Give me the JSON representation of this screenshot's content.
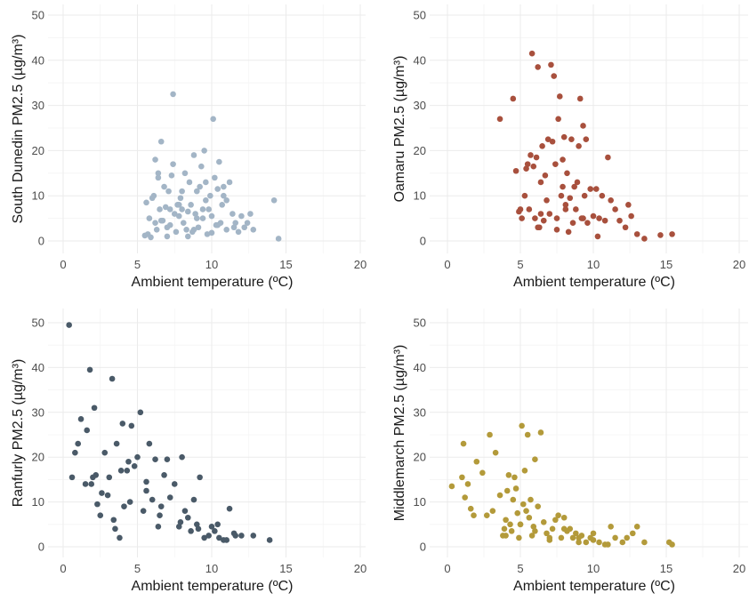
{
  "chart_data": [
    {
      "type": "scatter",
      "title": "",
      "xlabel": "Ambient temperature (ºC)",
      "ylabel": "South Dunedin PM2.5 (µg/m³)",
      "xlim": [
        0,
        20
      ],
      "ylim": [
        0,
        50
      ],
      "xticks": [
        "0",
        "5",
        "10",
        "15",
        "20"
      ],
      "yticks": [
        "0",
        "10",
        "20",
        "30",
        "40",
        "50"
      ],
      "grid": true,
      "color": "#a3b5c6",
      "series": [
        {
          "x": [
            5.5,
            5.6,
            5.7,
            5.8,
            6.0,
            6.2,
            6.3,
            6.4,
            6.5,
            6.6,
            6.7,
            6.8,
            6.9,
            7.0,
            7.1,
            7.2,
            7.3,
            7.4,
            7.5,
            7.6,
            7.7,
            7.8,
            7.9,
            8.0,
            8.1,
            8.2,
            8.3,
            8.4,
            8.5,
            8.6,
            8.7,
            8.8,
            8.9,
            9.0,
            9.1,
            9.2,
            9.3,
            9.4,
            9.5,
            9.6,
            9.7,
            9.8,
            9.9,
            10.0,
            10.1,
            10.2,
            10.3,
            10.4,
            10.5,
            10.6,
            10.7,
            10.8,
            11.0,
            11.2,
            11.4,
            11.6,
            11.8,
            12.0,
            12.2,
            12.4,
            12.6,
            12.8,
            14.2,
            14.5,
            6.1,
            6.4,
            7.0,
            7.4,
            7.8,
            8.4,
            9.0,
            9.6,
            10.4,
            11.0,
            5.9,
            6.6,
            8.0,
            8.8,
            9.4,
            10.0,
            10.8,
            11.5,
            6.2,
            7.2
          ],
          "y": [
            1.2,
            8.5,
            1.5,
            5,
            9.5,
            18,
            2.5,
            15,
            7,
            22,
            4.5,
            12,
            7.5,
            1,
            11,
            3.5,
            14.5,
            32.5,
            6,
            2,
            8,
            5.5,
            9.5,
            7,
            4,
            15,
            2.5,
            6.5,
            13,
            8,
            2,
            19,
            6,
            11,
            3,
            12,
            16.5,
            5,
            20,
            9,
            1.5,
            7,
            10,
            5.5,
            27,
            14,
            3.5,
            11.5,
            17.5,
            4,
            8,
            12,
            2.5,
            13,
            6,
            4,
            2,
            5.5,
            3,
            4,
            6,
            2.5,
            9,
            0.5,
            10,
            14,
            3,
            17,
            8,
            1,
            5,
            13,
            3.5,
            9,
            0.8,
            4.5,
            11,
            2.5,
            7,
            1.8,
            10,
            3,
            4,
            7
          ]
        }
      ]
    },
    {
      "type": "scatter",
      "title": "",
      "xlabel": "Ambient temperature (ºC)",
      "ylabel": "Oamaru PM2.5 (µg/m³)",
      "xlim": [
        0,
        20
      ],
      "ylim": [
        0,
        50
      ],
      "xticks": [
        "0",
        "5",
        "10",
        "15",
        "20"
      ],
      "yticks": [
        "0",
        "10",
        "20",
        "30",
        "40",
        "50"
      ],
      "grid": true,
      "color": "#a8503d",
      "series": [
        {
          "x": [
            3.6,
            4.5,
            4.7,
            4.9,
            5.1,
            5.3,
            5.5,
            5.6,
            5.7,
            5.8,
            5.9,
            6.0,
            6.1,
            6.2,
            6.3,
            6.4,
            6.5,
            6.6,
            6.7,
            6.8,
            6.9,
            7.0,
            7.1,
            7.2,
            7.3,
            7.4,
            7.5,
            7.6,
            7.7,
            7.8,
            7.9,
            8.0,
            8.1,
            8.2,
            8.3,
            8.4,
            8.5,
            8.6,
            8.7,
            8.8,
            8.9,
            9.0,
            9.1,
            9.2,
            9.3,
            9.4,
            9.5,
            9.6,
            9.8,
            10.0,
            10.2,
            10.4,
            10.6,
            10.8,
            11.0,
            11.2,
            11.5,
            11.8,
            12.2,
            12.6,
            13.0,
            13.5,
            14.6,
            15.4,
            5.0,
            5.4,
            6.2,
            7.5,
            8.1,
            9.3,
            10.3,
            12.4,
            6.4,
            7.9
          ],
          "y": [
            27,
            31.5,
            15.5,
            6.5,
            5,
            10,
            17,
            7,
            19,
            41.5,
            16.5,
            5,
            18.5,
            38.5,
            3,
            13,
            21,
            4.5,
            14.5,
            9,
            22.5,
            6,
            39,
            22,
            36.5,
            17,
            5,
            27,
            32,
            10,
            18,
            23,
            8,
            15,
            2,
            9.5,
            22.5,
            4,
            12,
            7,
            13,
            21,
            31.5,
            5,
            25.5,
            10,
            22.5,
            4,
            11.5,
            5.5,
            11.5,
            5,
            10,
            4.5,
            18.5,
            9,
            7,
            4.5,
            3,
            5.5,
            1.5,
            0.5,
            1.3,
            1.5,
            7,
            16,
            3,
            2.5,
            7,
            5,
            1,
            8,
            6,
            12
          ]
        }
      ]
    },
    {
      "type": "scatter",
      "title": "",
      "xlabel": "Ambient temperature (ºC)",
      "ylabel": "Ranfurly PM2.5 (µg/m³)",
      "xlim": [
        0,
        20
      ],
      "ylim": [
        0,
        50
      ],
      "xticks": [
        "0",
        "5",
        "10",
        "15",
        "20"
      ],
      "yticks": [
        "0",
        "10",
        "20",
        "30",
        "40",
        "50"
      ],
      "grid": true,
      "color": "#4a5a68",
      "series": [
        {
          "x": [
            0.4,
            0.6,
            0.8,
            1.0,
            1.2,
            1.5,
            1.6,
            1.8,
            2.0,
            2.1,
            2.3,
            2.5,
            2.6,
            2.8,
            3.0,
            3.1,
            3.3,
            3.5,
            3.6,
            3.8,
            4.0,
            4.1,
            4.3,
            4.5,
            4.6,
            4.8,
            5.0,
            5.2,
            5.4,
            5.6,
            5.8,
            6.0,
            6.2,
            6.4,
            6.6,
            6.8,
            7.0,
            7.2,
            7.5,
            7.8,
            8.0,
            8.2,
            8.4,
            8.6,
            8.8,
            9.0,
            9.2,
            9.5,
            9.8,
            10.0,
            10.2,
            10.5,
            10.8,
            11.0,
            11.2,
            11.5,
            12.0,
            12.8,
            13.9,
            2.2,
            3.4,
            4.4,
            5.6,
            6.5,
            7.9,
            9.1,
            10.4,
            11.6,
            1.9,
            3.9
          ],
          "y": [
            49.5,
            15.5,
            21,
            23,
            28.5,
            14,
            26,
            39.5,
            15.5,
            31,
            9.5,
            7,
            12,
            21,
            11.5,
            15.5,
            37.5,
            4,
            23,
            2,
            27.5,
            9,
            17,
            10,
            27,
            18,
            20,
            30,
            8,
            14.5,
            23,
            10.5,
            19.5,
            4.5,
            9,
            16,
            19.5,
            11,
            14,
            4.5,
            20,
            8,
            6.5,
            3.5,
            10.5,
            5,
            15.5,
            2,
            2.5,
            4.5,
            3.5,
            2,
            1.5,
            1.5,
            8.5,
            3,
            2.5,
            2.5,
            1.5,
            16,
            6,
            19,
            12.5,
            7,
            5.5,
            4,
            5,
            2.5,
            14,
            17
          ]
        }
      ]
    },
    {
      "type": "scatter",
      "title": "",
      "xlabel": "Ambient temperature (ºC)",
      "ylabel": "Middlemarch PM2.5 (µg/m³)",
      "xlim": [
        0,
        20
      ],
      "ylim": [
        0,
        50
      ],
      "xticks": [
        "0",
        "5",
        "10",
        "15",
        "20"
      ],
      "yticks": [
        "0",
        "10",
        "20",
        "30",
        "40",
        "50"
      ],
      "grid": true,
      "color": "#b39a3a",
      "series": [
        {
          "x": [
            0.3,
            1.0,
            1.1,
            1.2,
            1.4,
            1.6,
            1.8,
            2.0,
            2.4,
            2.7,
            2.9,
            3.1,
            3.3,
            3.6,
            3.8,
            3.9,
            4.0,
            4.1,
            4.2,
            4.3,
            4.4,
            4.5,
            4.6,
            4.7,
            4.8,
            4.9,
            5.0,
            5.1,
            5.2,
            5.3,
            5.4,
            5.5,
            5.6,
            5.7,
            5.8,
            5.9,
            6.0,
            6.2,
            6.4,
            6.6,
            6.8,
            7.0,
            7.2,
            7.4,
            7.6,
            7.8,
            8.0,
            8.2,
            8.4,
            8.6,
            8.8,
            9.0,
            9.2,
            9.5,
            9.8,
            10.0,
            10.4,
            10.8,
            11.2,
            11.5,
            12.0,
            12.3,
            12.7,
            13.0,
            13.5,
            15.2,
            15.4,
            4.0,
            5.0,
            6.0,
            7.0,
            8.0,
            9.0,
            10.0,
            11.0
          ],
          "y": [
            13.5,
            15.5,
            23,
            11,
            14,
            8.5,
            7,
            19,
            16.5,
            7,
            25,
            8,
            21,
            11.5,
            2.5,
            4,
            6,
            12.5,
            16,
            5,
            3.5,
            10.5,
            15.5,
            13,
            7.5,
            2,
            5,
            27,
            9.5,
            17,
            8,
            25,
            6.5,
            10.5,
            2.5,
            4.5,
            19.5,
            9,
            25.5,
            5.5,
            3,
            2,
            4,
            6,
            7,
            2,
            6.5,
            3.5,
            4,
            2,
            3,
            1,
            2.5,
            1,
            2,
            3,
            1,
            0.5,
            4.5,
            2,
            1,
            2,
            3,
            4.5,
            1,
            1,
            0.5,
            2.5,
            5,
            3.5,
            1.5,
            4,
            2,
            1.5,
            0.5
          ]
        }
      ]
    }
  ]
}
